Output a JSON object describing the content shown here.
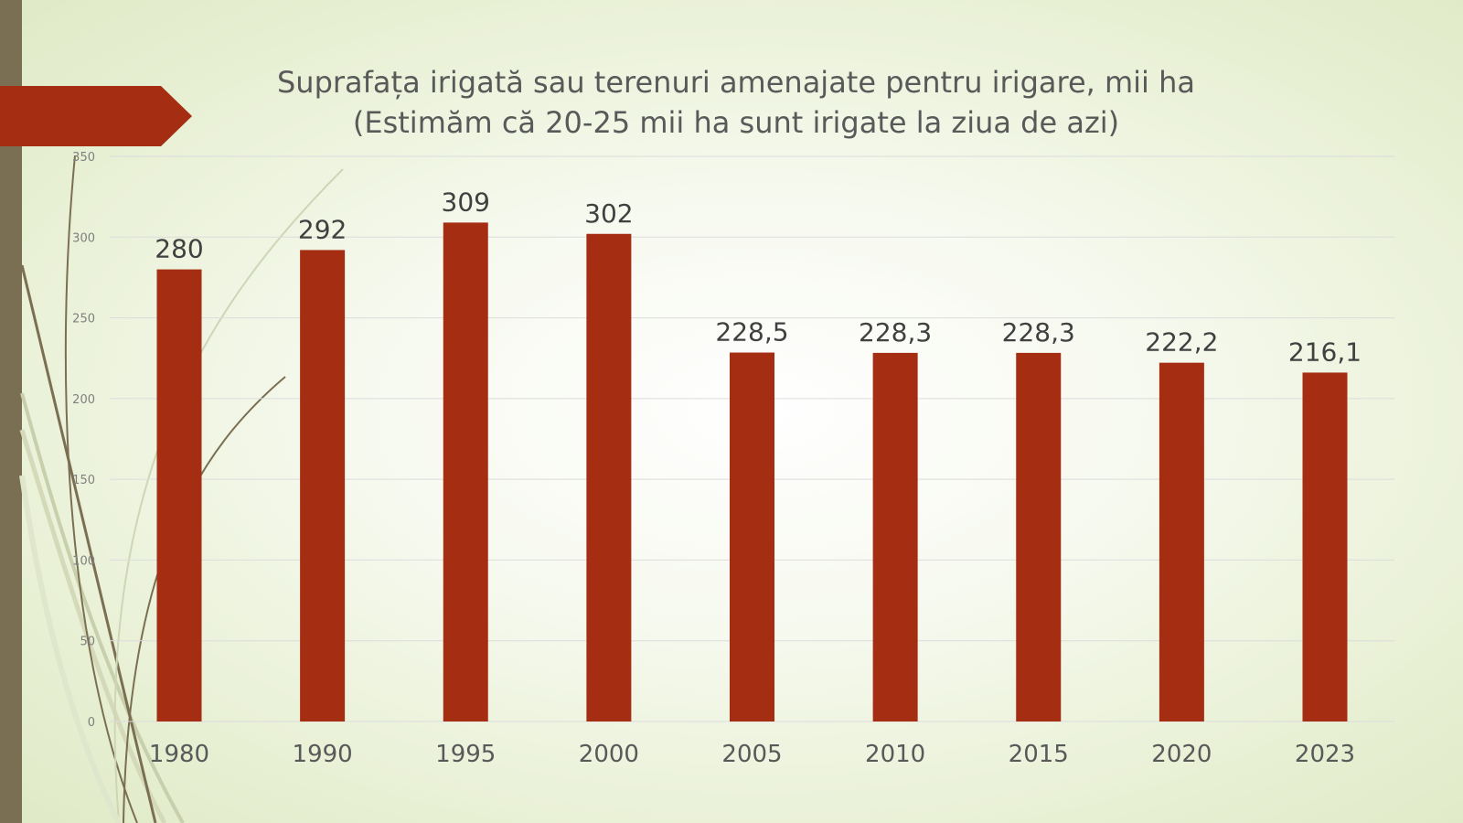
{
  "colors": {
    "bar": "#a52d12",
    "left_bar": "#7a6f52",
    "banner": "#a52d12",
    "gridline": "#dcdcdc",
    "text": "#595959"
  },
  "chart_data": {
    "type": "bar",
    "title": "Suprafața irigată sau terenuri amenajate pentru irigare, mii ha",
    "subtitle": "(Estimăm că 20-25 mii ha sunt irigate la ziua de azi)",
    "categories": [
      "1980",
      "1990",
      "1995",
      "2000",
      "2005",
      "2010",
      "2015",
      "2020",
      "2023"
    ],
    "values": [
      280,
      292,
      309,
      302,
      228.5,
      228.3,
      228.3,
      222.2,
      216.1
    ],
    "data_labels": [
      "280",
      "292",
      "309",
      "302",
      "228,5",
      "228,3",
      "228,3",
      "222,2",
      "216,1"
    ],
    "ylim": [
      0,
      350
    ],
    "yticks": [
      0,
      50,
      100,
      150,
      200,
      250,
      300,
      350
    ],
    "grid": true,
    "xlabel": "",
    "ylabel": ""
  }
}
